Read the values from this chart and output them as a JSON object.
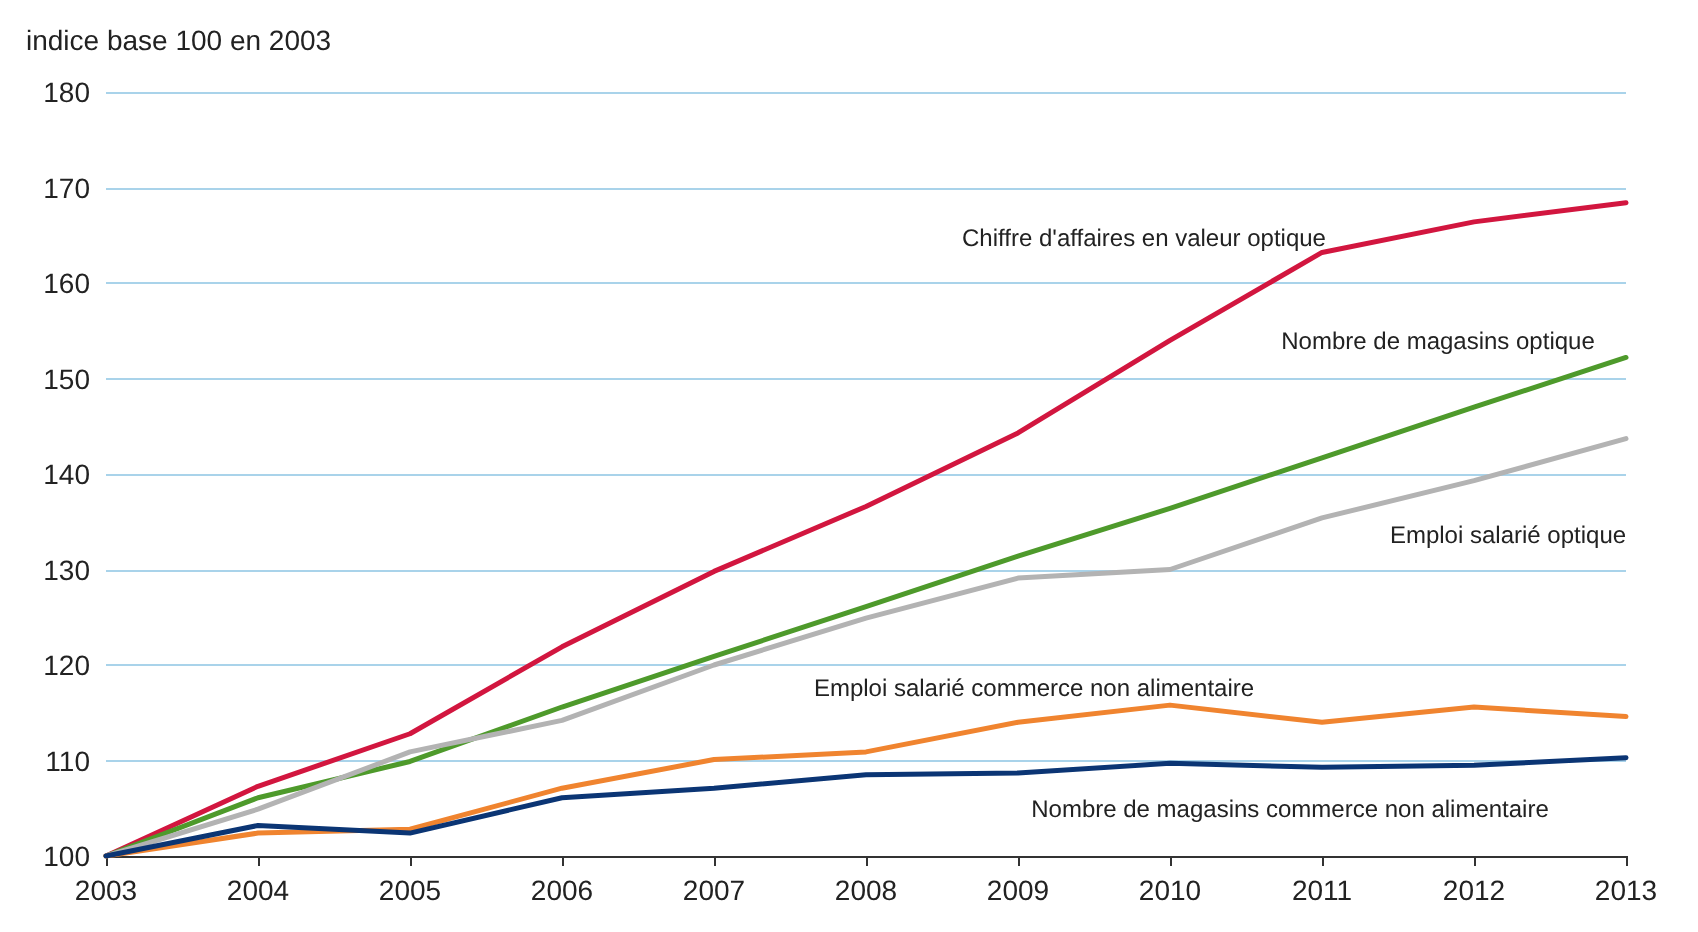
{
  "chart_data": {
    "type": "line",
    "ylabel": "indice base 100 en 2003",
    "categories": [
      "2003",
      "2004",
      "2005",
      "2006",
      "2007",
      "2008",
      "2009",
      "2010",
      "2011",
      "2012",
      "2013"
    ],
    "series": [
      {
        "name": "Chiffre d'affaires en valeur optique",
        "color": "#d2163f",
        "values": [
          100,
          107.3,
          112.8,
          121.9,
          129.8,
          136.6,
          144.3,
          154.0,
          163.2,
          166.4,
          168.4
        ]
      },
      {
        "name": "Nombre de magasins optique",
        "color": "#4e9a2b",
        "values": [
          100,
          106.1,
          109.9,
          115.6,
          120.9,
          126.1,
          131.4,
          136.4,
          141.7,
          147.0,
          152.2
        ]
      },
      {
        "name": "Emploi salarié optique",
        "color": "#b3b3b3",
        "values": [
          100,
          104.9,
          110.9,
          114.2,
          120.0,
          124.9,
          129.1,
          130.0,
          135.4,
          139.3,
          143.7
        ]
      },
      {
        "name": "Emploi salarié commerce non alimentaire",
        "color": "#f0842f",
        "values": [
          100,
          102.4,
          102.8,
          107.1,
          110.1,
          110.9,
          114.0,
          115.8,
          114.0,
          115.6,
          114.6
        ]
      },
      {
        "name": "Nombre de magasins commerce non alimentaire",
        "color": "#0b3574",
        "values": [
          100,
          103.2,
          102.4,
          106.1,
          107.1,
          108.5,
          108.7,
          109.7,
          109.3,
          109.5,
          110.3
        ]
      }
    ],
    "ylim": [
      100,
      180
    ],
    "yticks": [
      100,
      110,
      120,
      130,
      140,
      150,
      160,
      170,
      180
    ],
    "grid": "y",
    "legend": false,
    "marker": "none",
    "line_style": "solid"
  }
}
